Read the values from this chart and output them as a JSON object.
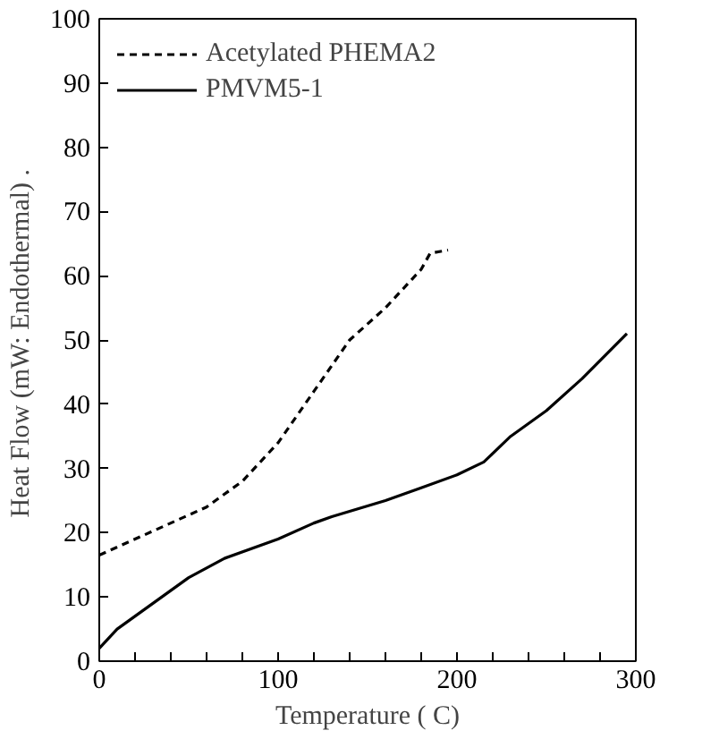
{
  "chart_data": {
    "type": "line",
    "xlabel": "Temperature ( C)",
    "ylabel": "Heat Flow (mW: Endothermal)  .",
    "xlim": [
      0,
      300
    ],
    "ylim": [
      0,
      100
    ],
    "xticks": [
      0,
      {
        "value": 20,
        "label": null
      },
      {
        "value": 40,
        "label": null
      },
      {
        "value": 60,
        "label": null
      },
      {
        "value": 80,
        "label": null
      },
      100,
      {
        "value": 120,
        "label": null
      },
      {
        "value": 140,
        "label": null
      },
      {
        "value": 160,
        "label": null
      },
      {
        "value": 180,
        "label": null
      },
      200,
      {
        "value": 220,
        "label": null
      },
      {
        "value": 240,
        "label": null
      },
      {
        "value": 260,
        "label": null
      },
      {
        "value": 280,
        "label": null
      },
      300
    ],
    "yticks": [
      0,
      10,
      20,
      30,
      40,
      50,
      60,
      70,
      80,
      90,
      100
    ],
    "grid": false,
    "legend": "top left",
    "marker": "none",
    "series": [
      {
        "name": "Acetylated PHEMA2",
        "color": "#000000",
        "line_style": "dotted",
        "x": [
          0,
          20,
          40,
          60,
          80,
          100,
          120,
          140,
          160,
          180,
          185,
          195
        ],
        "values": [
          16.5,
          19,
          21.5,
          24,
          28,
          34,
          42,
          50,
          55,
          61,
          63.5,
          64
        ]
      },
      {
        "name": "PMVM5-1",
        "color": "#000000",
        "line_style": "solid",
        "x": [
          0,
          10,
          30,
          50,
          70,
          100,
          120,
          130,
          160,
          180,
          200,
          215,
          230,
          250,
          270,
          295
        ],
        "values": [
          2,
          5,
          9,
          13,
          16,
          19,
          21.5,
          22.5,
          25,
          27,
          29,
          31,
          35,
          39,
          44,
          51
        ]
      }
    ]
  }
}
